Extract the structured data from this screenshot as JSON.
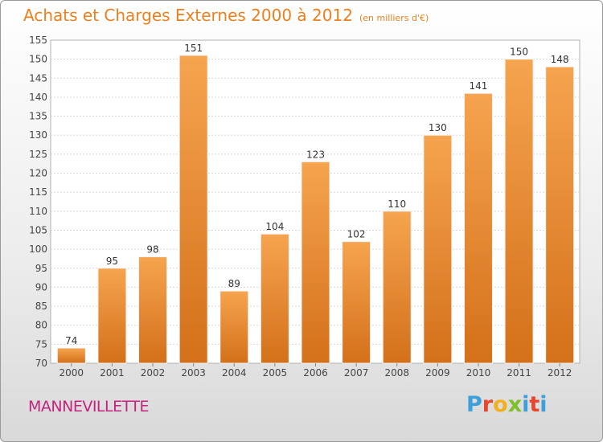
{
  "header": {
    "title": "Achats et Charges Externes 2000 à 2012",
    "unit": "(en milliers d'€)"
  },
  "footer": {
    "commune": "MANNEVILLETTE",
    "logo_letters": [
      "P",
      "r",
      "o",
      "x",
      "i",
      "t",
      "i"
    ],
    "logo_colors": [
      "#3f9fd8",
      "#e8452e",
      "#f2b01e",
      "#7fbf2a",
      "#3f9fd8",
      "#e8452e",
      "#3f9fd8"
    ]
  },
  "colors": {
    "bar_light": "#f6a44f",
    "bar_dark": "#d4701a",
    "title": "#ee7f1d",
    "commune": "#c4247f"
  },
  "chart_data": {
    "type": "bar",
    "title": "Achats et Charges Externes 2000 à 2012",
    "subtitle": "(en milliers d'€)",
    "categories": [
      "2000",
      "2001",
      "2002",
      "2003",
      "2004",
      "2005",
      "2006",
      "2007",
      "2008",
      "2009",
      "2010",
      "2011",
      "2012"
    ],
    "values": [
      74,
      95,
      98,
      151,
      89,
      104,
      123,
      102,
      110,
      130,
      141,
      150,
      148
    ],
    "value_labels": [
      "74",
      "95",
      "98",
      "151",
      "89",
      "104",
      "123",
      "102",
      "110",
      "130",
      "141",
      "150",
      "148"
    ],
    "ylim": [
      70,
      155
    ],
    "yticks": [
      70,
      75,
      80,
      85,
      90,
      95,
      100,
      105,
      110,
      115,
      120,
      125,
      130,
      135,
      140,
      145,
      150,
      155
    ],
    "ytick_labels": [
      "70",
      "75",
      "80",
      "85",
      "90",
      "95",
      "100",
      "105",
      "110",
      "115",
      "120",
      "125",
      "130",
      "135",
      "140",
      "145",
      "150",
      "155"
    ],
    "grid": true,
    "legend": "none"
  }
}
